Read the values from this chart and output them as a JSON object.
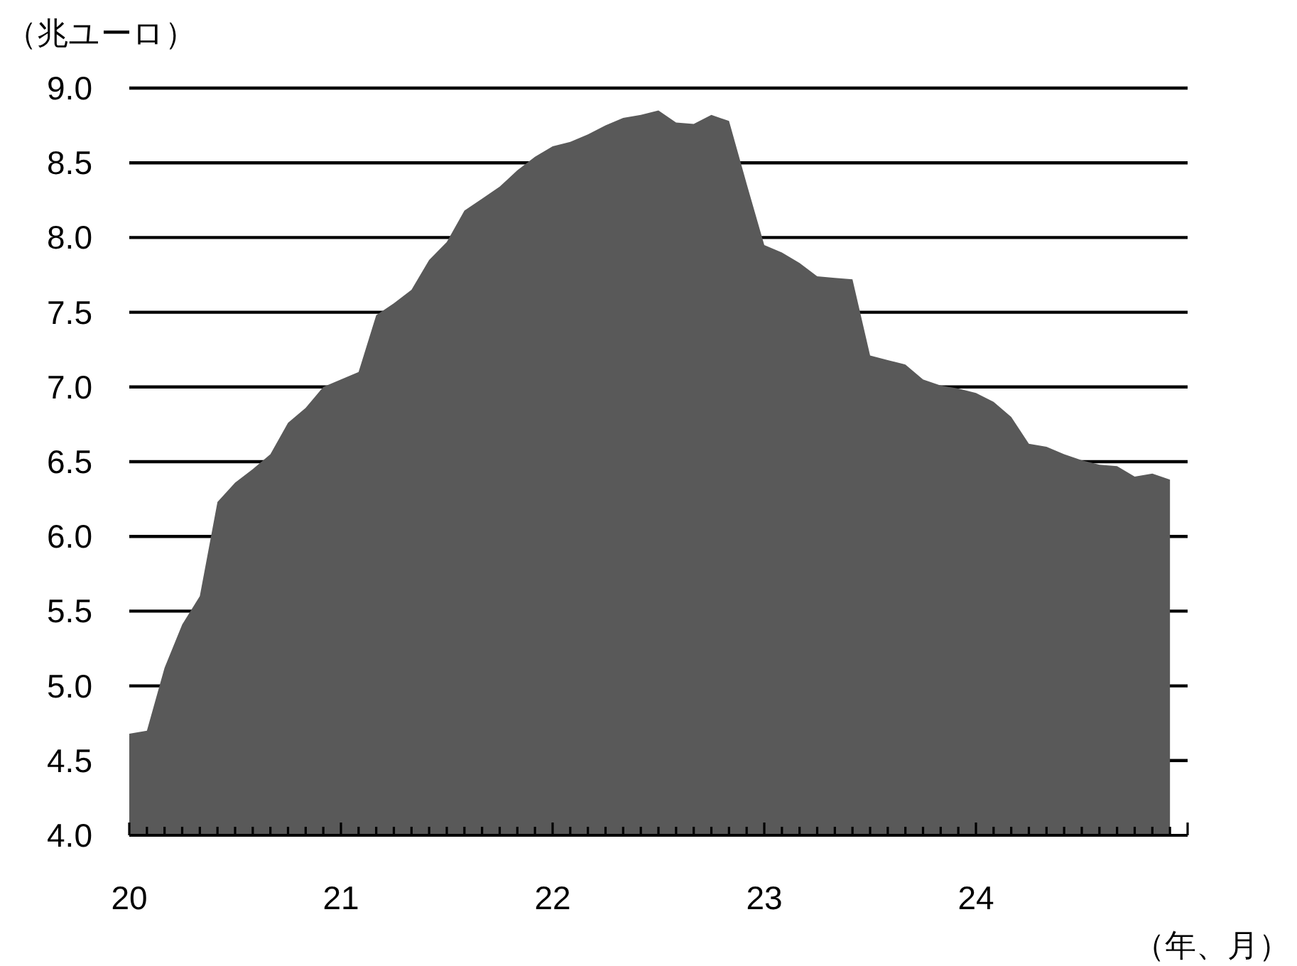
{
  "chart_data": {
    "type": "area",
    "ylabel": "（兆ユーロ）",
    "xlabel": "（年、月）",
    "x": [
      "2020-01",
      "2020-02",
      "2020-03",
      "2020-04",
      "2020-05",
      "2020-06",
      "2020-07",
      "2020-08",
      "2020-09",
      "2020-10",
      "2020-11",
      "2020-12",
      "2021-01",
      "2021-02",
      "2021-03",
      "2021-04",
      "2021-05",
      "2021-06",
      "2021-07",
      "2021-08",
      "2021-09",
      "2021-10",
      "2021-11",
      "2021-12",
      "2022-01",
      "2022-02",
      "2022-03",
      "2022-04",
      "2022-05",
      "2022-06",
      "2022-07",
      "2022-08",
      "2022-09",
      "2022-10",
      "2022-11",
      "2022-12",
      "2023-01",
      "2023-02",
      "2023-03",
      "2023-04",
      "2023-05",
      "2023-06",
      "2023-07",
      "2023-08",
      "2023-09",
      "2023-10",
      "2023-11",
      "2023-12",
      "2024-01",
      "2024-02",
      "2024-03",
      "2024-04",
      "2024-05",
      "2024-06",
      "2024-07",
      "2024-08",
      "2024-09",
      "2024-10",
      "2024-11",
      "2024-12"
    ],
    "series": [
      {
        "color": "#595959",
        "values": [
          4.68,
          4.7,
          5.12,
          5.41,
          5.6,
          6.23,
          6.36,
          6.45,
          6.55,
          6.76,
          6.86,
          7.0,
          7.05,
          7.1,
          7.48,
          7.56,
          7.65,
          7.85,
          7.97,
          8.18,
          8.26,
          8.34,
          8.45,
          8.54,
          8.61,
          8.64,
          8.69,
          8.75,
          8.8,
          8.82,
          8.85,
          8.77,
          8.76,
          8.82,
          8.78,
          8.36,
          7.95,
          7.9,
          7.83,
          7.74,
          7.73,
          7.72,
          7.21,
          7.18,
          7.15,
          7.05,
          7.01,
          6.99,
          6.96,
          6.9,
          6.8,
          6.62,
          6.6,
          6.55,
          6.51,
          6.48,
          6.47,
          6.4,
          6.42,
          6.38
        ]
      }
    ],
    "xlim": [
      "2020-01",
      "2025-01"
    ],
    "xticks": [
      {
        "value": "2020-01",
        "label": "20"
      },
      {
        "value": "2020-02",
        "label": null
      },
      {
        "value": "2020-03",
        "label": null
      },
      {
        "value": "2020-04",
        "label": null
      },
      {
        "value": "2020-05",
        "label": null
      },
      {
        "value": "2020-06",
        "label": null
      },
      {
        "value": "2020-07",
        "label": null
      },
      {
        "value": "2020-08",
        "label": null
      },
      {
        "value": "2020-09",
        "label": null
      },
      {
        "value": "2020-10",
        "label": null
      },
      {
        "value": "2020-11",
        "label": null
      },
      {
        "value": "2020-12",
        "label": null
      },
      {
        "value": "2021-01",
        "label": "21"
      },
      {
        "value": "2021-02",
        "label": null
      },
      {
        "value": "2021-03",
        "label": null
      },
      {
        "value": "2021-04",
        "label": null
      },
      {
        "value": "2021-05",
        "label": null
      },
      {
        "value": "2021-06",
        "label": null
      },
      {
        "value": "2021-07",
        "label": null
      },
      {
        "value": "2021-08",
        "label": null
      },
      {
        "value": "2021-09",
        "label": null
      },
      {
        "value": "2021-10",
        "label": null
      },
      {
        "value": "2021-11",
        "label": null
      },
      {
        "value": "2021-12",
        "label": null
      },
      {
        "value": "2022-01",
        "label": "22"
      },
      {
        "value": "2022-02",
        "label": null
      },
      {
        "value": "2022-03",
        "label": null
      },
      {
        "value": "2022-04",
        "label": null
      },
      {
        "value": "2022-05",
        "label": null
      },
      {
        "value": "2022-06",
        "label": null
      },
      {
        "value": "2022-07",
        "label": null
      },
      {
        "value": "2022-08",
        "label": null
      },
      {
        "value": "2022-09",
        "label": null
      },
      {
        "value": "2022-10",
        "label": null
      },
      {
        "value": "2022-11",
        "label": null
      },
      {
        "value": "2022-12",
        "label": null
      },
      {
        "value": "2023-01",
        "label": "23"
      },
      {
        "value": "2023-02",
        "label": null
      },
      {
        "value": "2023-03",
        "label": null
      },
      {
        "value": "2023-04",
        "label": null
      },
      {
        "value": "2023-05",
        "label": null
      },
      {
        "value": "2023-06",
        "label": null
      },
      {
        "value": "2023-07",
        "label": null
      },
      {
        "value": "2023-08",
        "label": null
      },
      {
        "value": "2023-09",
        "label": null
      },
      {
        "value": "2023-10",
        "label": null
      },
      {
        "value": "2023-11",
        "label": null
      },
      {
        "value": "2023-12",
        "label": null
      },
      {
        "value": "2024-01",
        "label": "24"
      },
      {
        "value": "2024-02",
        "label": null
      },
      {
        "value": "2024-03",
        "label": null
      },
      {
        "value": "2024-04",
        "label": null
      },
      {
        "value": "2024-05",
        "label": null
      },
      {
        "value": "2024-06",
        "label": null
      },
      {
        "value": "2024-07",
        "label": null
      },
      {
        "value": "2024-08",
        "label": null
      },
      {
        "value": "2024-09",
        "label": null
      },
      {
        "value": "2024-10",
        "label": null
      },
      {
        "value": "2024-11",
        "label": null
      },
      {
        "value": "2024-12",
        "label": null
      },
      {
        "value": "2025-01",
        "label": null
      }
    ],
    "ylim": [
      4,
      9
    ],
    "yticks": [
      {
        "value": 4,
        "label": "4.0"
      },
      {
        "value": 4.5,
        "label": "4.5"
      },
      {
        "value": 5,
        "label": "5.0"
      },
      {
        "value": 5.5,
        "label": "5.5"
      },
      {
        "value": 6,
        "label": "6.0"
      },
      {
        "value": 6.5,
        "label": "6.5"
      },
      {
        "value": 7,
        "label": "7.0"
      },
      {
        "value": 7.5,
        "label": "7.5"
      },
      {
        "value": 8,
        "label": "8.0"
      },
      {
        "value": 8.5,
        "label": "8.5"
      },
      {
        "value": 9,
        "label": "9.0"
      }
    ],
    "grid": "y"
  }
}
